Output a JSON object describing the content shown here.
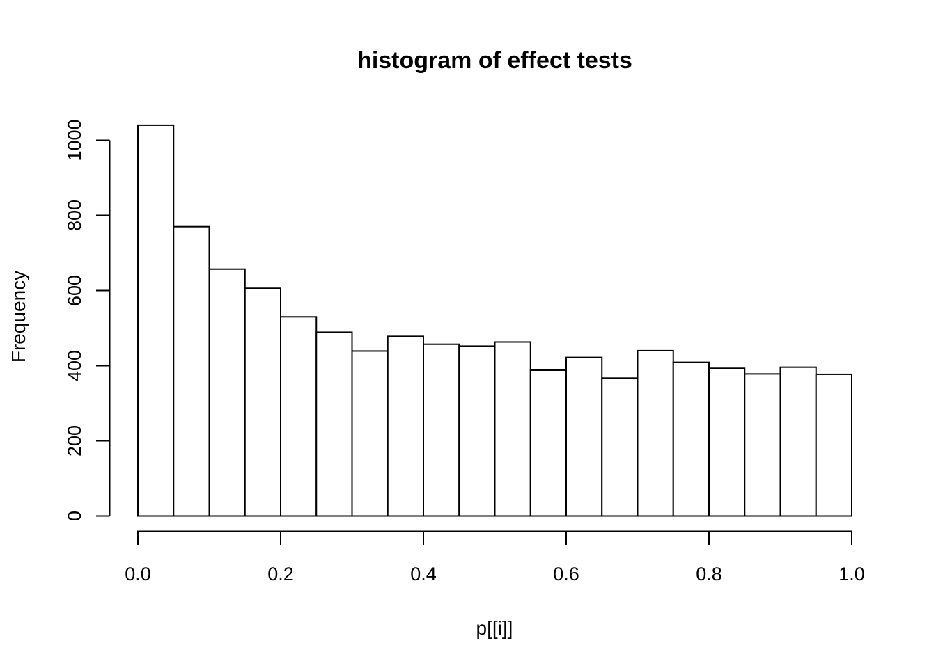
{
  "chart_data": {
    "type": "bar",
    "subtype": "histogram",
    "title": "histogram of effect tests",
    "xlabel": "p[[i]]",
    "ylabel": "Frequency",
    "bin_edges": [
      0.0,
      0.05,
      0.1,
      0.15,
      0.2,
      0.25,
      0.3,
      0.35,
      0.4,
      0.45,
      0.5,
      0.55,
      0.6,
      0.65,
      0.7,
      0.75,
      0.8,
      0.85,
      0.9,
      0.95,
      1.0
    ],
    "values": [
      1040,
      770,
      657,
      606,
      530,
      489,
      439,
      478,
      457,
      452,
      463,
      388,
      422,
      367,
      440,
      409,
      393,
      378,
      396,
      377
    ],
    "x_ticks": [
      {
        "value": 0.0,
        "label": "0.0"
      },
      {
        "value": 0.2,
        "label": "0.2"
      },
      {
        "value": 0.4,
        "label": "0.4"
      },
      {
        "value": 0.6,
        "label": "0.6"
      },
      {
        "value": 0.8,
        "label": "0.8"
      },
      {
        "value": 1.0,
        "label": "1.0"
      }
    ],
    "y_ticks": [
      {
        "value": 0,
        "label": "0"
      },
      {
        "value": 200,
        "label": "200"
      },
      {
        "value": 400,
        "label": "400"
      },
      {
        "value": 600,
        "label": "600"
      },
      {
        "value": 800,
        "label": "800"
      },
      {
        "value": 1000,
        "label": "1000"
      }
    ],
    "xlim": [
      0.0,
      1.0
    ],
    "ylim": [
      0,
      1040
    ],
    "grid": false,
    "legend": "none",
    "bar_fill": "#ffffff",
    "bar_stroke": "#000000",
    "axis_color": "#000000",
    "text_color": "#000000",
    "background": "#ffffff"
  }
}
